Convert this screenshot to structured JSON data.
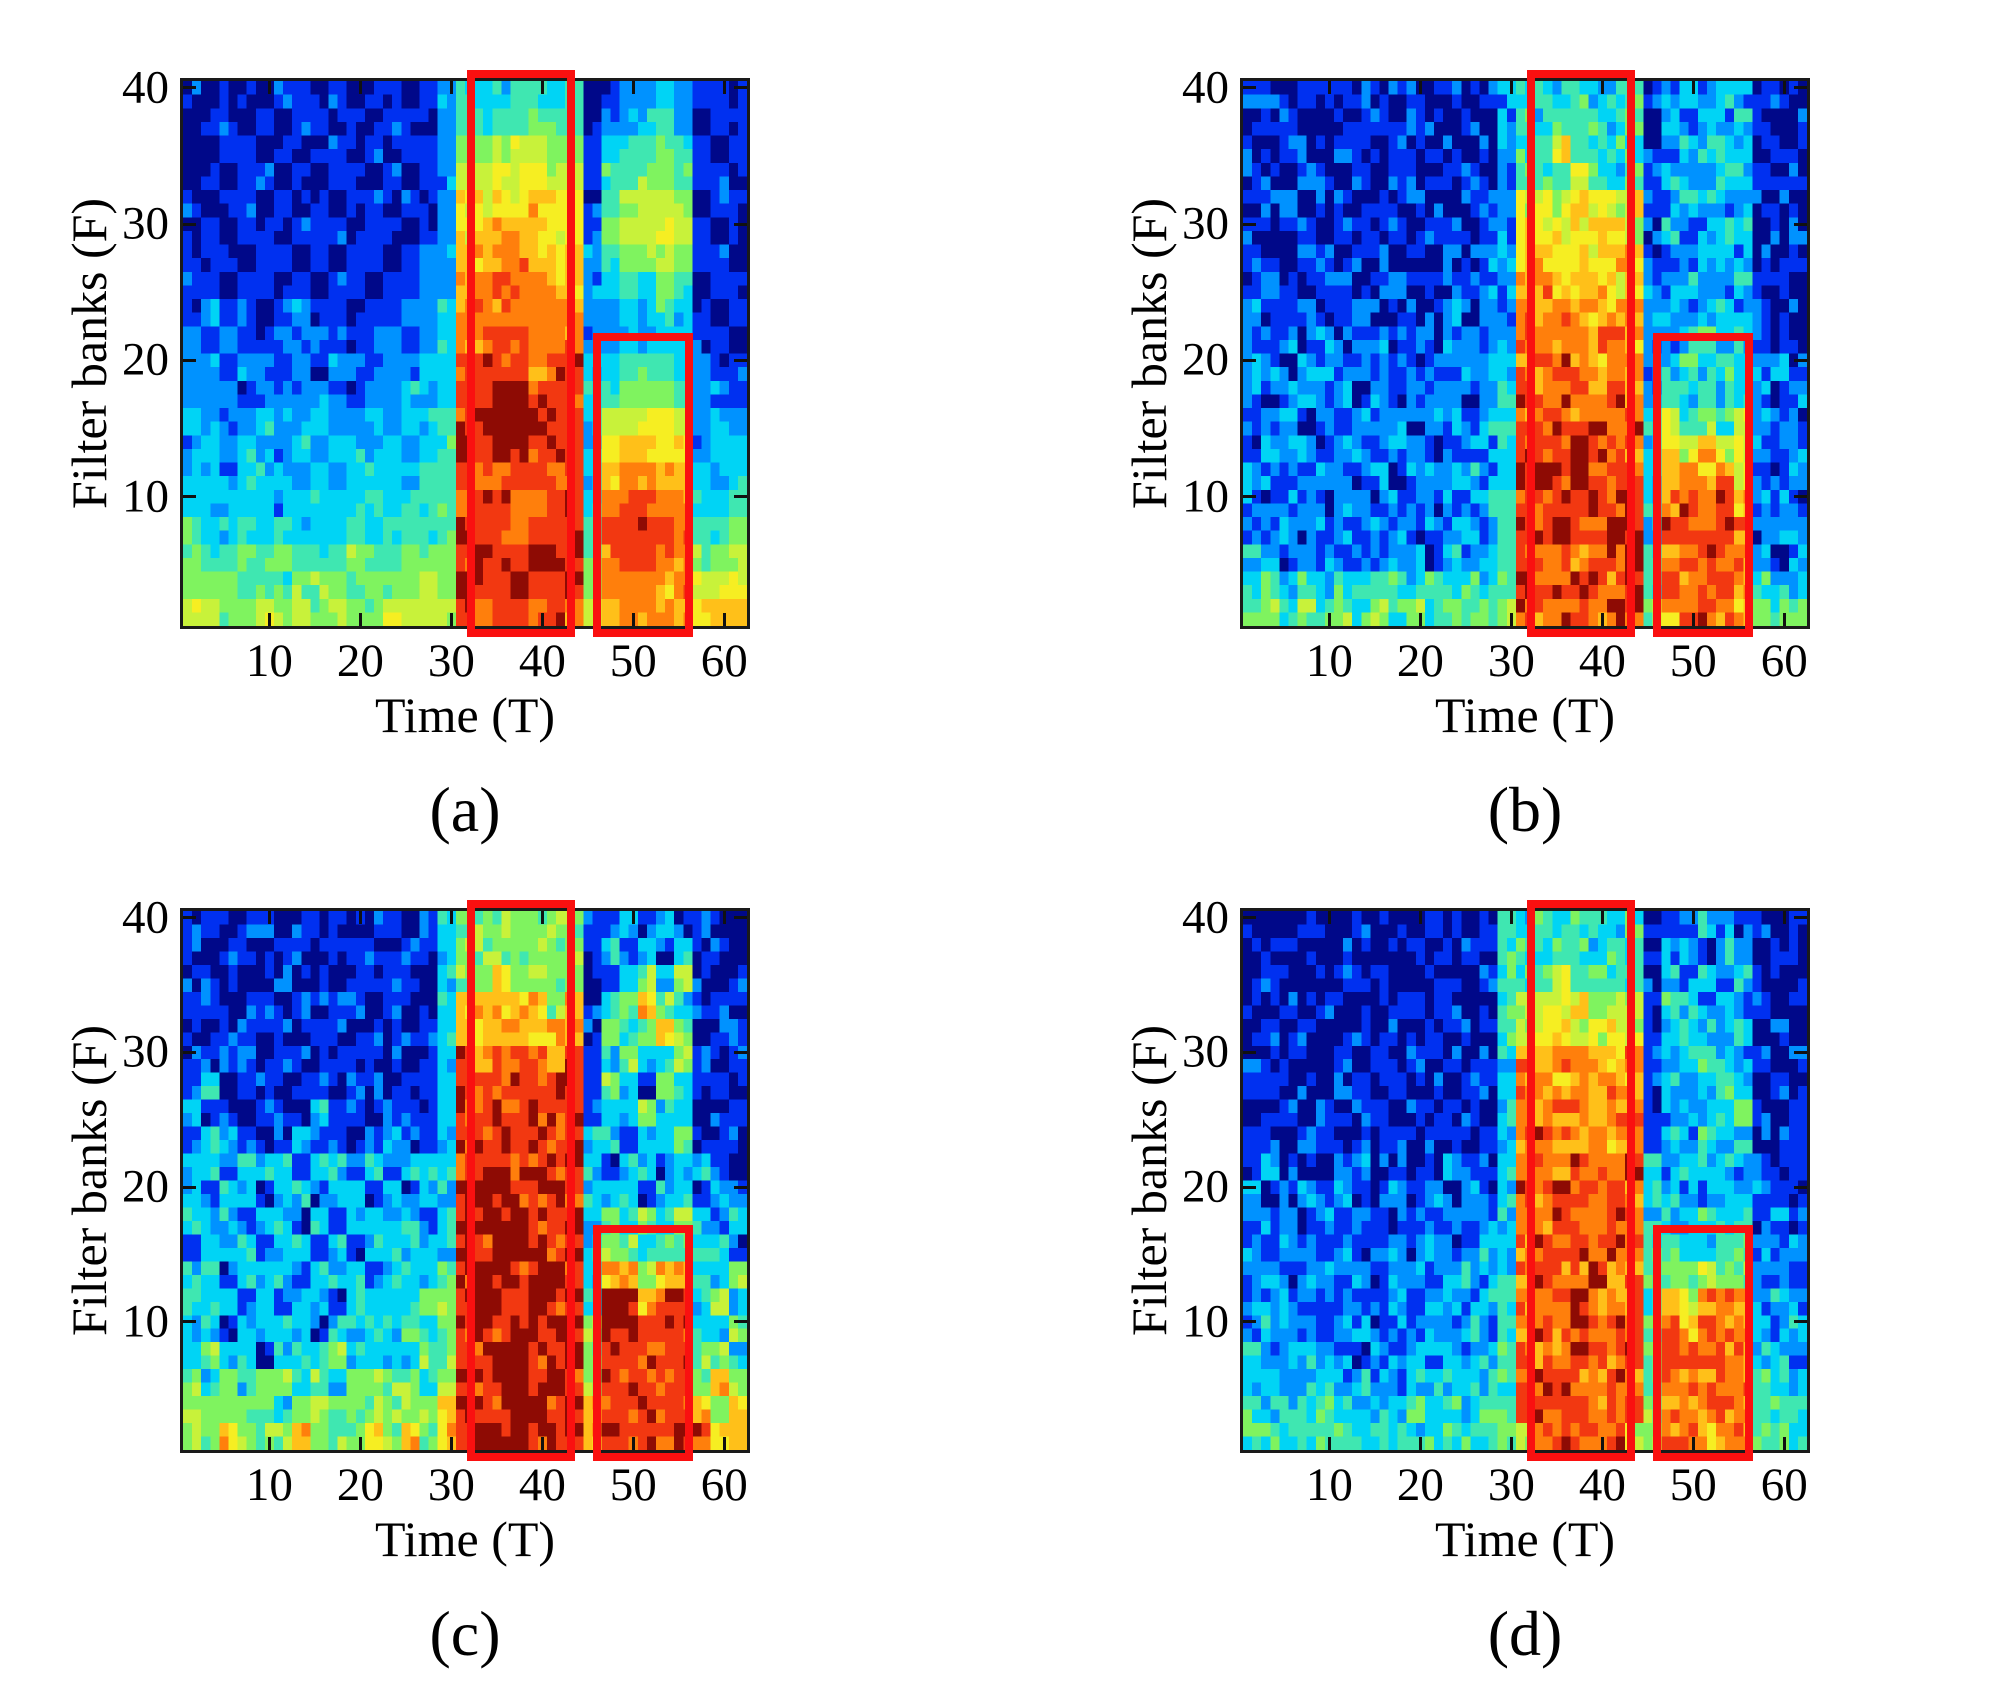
{
  "figure": {
    "background": "#ffffff",
    "layout": "2x2 grid of spectrogram heatmaps with red highlight boxes"
  },
  "palette": {
    "jet_levels": [
      "#000889",
      "#0030f0",
      "#0092ff",
      "#00d4f5",
      "#3fe7b1",
      "#7ff35f",
      "#c8f23a",
      "#f6ee22",
      "#ffc019",
      "#ff7f0c",
      "#f23811",
      "#8e0b04"
    ],
    "level_chars": "0123456789ab",
    "highlight_box_color": "#fa1010",
    "axis_color": "#1a1a1a",
    "text_color": "#000000"
  },
  "chart_data": [
    {
      "type": "heatmap",
      "panel_label": "(a)",
      "xlabel": "Time (T)",
      "ylabel": "Filter banks (F)",
      "x_ticks": [
        10,
        20,
        30,
        40,
        50,
        60
      ],
      "y_ticks": [
        10,
        20,
        30,
        40
      ],
      "x_range": [
        0.5,
        62.5
      ],
      "y_range": [
        0.5,
        40.5
      ],
      "rendering": "smooth spectrogram, jet colormap",
      "noise": 0.18,
      "seed": 11,
      "grid_cols": 31,
      "grid_rows": 20,
      "t_per_col": 2,
      "f_per_row": 2,
      "highlight_boxes": [
        {
          "t_start": 31.7,
          "t_end": 43.6,
          "f_start": -0.3,
          "f_end": 41.3
        },
        {
          "t_start": 45.6,
          "t_end": 56.6,
          "f_start": -0.3,
          "f_end": 22.0
        }
      ],
      "grid_top_to_bottom": [
        "1001011010110124334434012232110",
        "0110101101011024444544022342011",
        "0011010110101125566655134454101",
        "0101101011010126677766144554110",
        "1011010101101127777877145665011",
        "0101101110110127888877156676101",
        "1110110101101228899888245565110",
        "1101101011011228999988234454011",
        "1211012110112239999999223343101",
        "21211212112212399aa999223233110",
        "221221212212233aaaa9aa334443211",
        "222122122122323aabbaaa345554221",
        "322232232232334abbbbaa366776232",
        "232322323323234babbaba378877233",
        "332333232333344a99aa9a389988323",
        "3333323333434449aa99aa39aa99334",
        "433434333434444aaa9aaa4aaaa9445",
        "544545444544555abaabba49aa99556",
        "555454555455565baabaab599989667",
        "665565656556666a9aa9a9689998788"
      ]
    },
    {
      "type": "heatmap",
      "panel_label": "(b)",
      "xlabel": "Time (T)",
      "ylabel": "Filter banks (F)",
      "x_ticks": [
        10,
        20,
        30,
        40,
        50,
        60
      ],
      "y_ticks": [
        10,
        20,
        30,
        40
      ],
      "x_range": [
        0.5,
        62.5
      ],
      "y_range": [
        0.5,
        40.5
      ],
      "rendering": "quantized speckled spectrogram, jet colormap",
      "noise": 0.5,
      "seed": 29,
      "grid_cols": 31,
      "grid_rows": 20,
      "t_per_col": 2,
      "f_per_row": 2,
      "highlight_boxes": [
        {
          "t_start": 31.7,
          "t_end": 43.6,
          "f_start": -0.3,
          "f_end": 41.3
        },
        {
          "t_start": 45.6,
          "t_end": 56.6,
          "f_start": -0.3,
          "f_end": 22.0
        }
      ],
      "grid_top_to_bottom": [
        "1101011011010123434334123232110",
        "0110101101101024344434132323101",
        "1011010110110124474344123332010",
        "1101101011011024447434133233101",
        "0110110101101126767767123322110",
        "1011011010110127677876132233011",
        "1101101101011228878788122332101",
        "1210110110112228988878223223110",
        "2112112101121229899889232332101",
        "1221211212122139989998223433210",
        "22122121212122399a9899234343221",
        "212212121222123a9aa9a9243434212",
        "2221212221222339aa9a9a364546221",
        "122212212212223aa9baa9376867222",
        "221222121222323abab9aa389897212",
        "212212212212234a9aabab39a9a8221",
        "222122122122324aabaaba3aa9a9122",
        "321221212213234a9a9aab49aaa9212",
        "343434344343434baaba9a4a99a8433",
        "454545454545455a9aa9aa589a98544"
      ]
    },
    {
      "type": "heatmap",
      "panel_label": "(c)",
      "xlabel": "Time (T)",
      "ylabel": "Filter banks (F)",
      "x_ticks": [
        10,
        20,
        30,
        40,
        50,
        60
      ],
      "y_ticks": [
        10,
        20,
        30,
        40
      ],
      "x_range": [
        0.5,
        62.5
      ],
      "y_range": [
        0.5,
        40.5
      ],
      "rendering": "coarsely quantized spectrogram, jet colormap",
      "noise": 0.38,
      "seed": 47,
      "grid_cols": 31,
      "grid_rows": 20,
      "t_per_col": 2,
      "f_per_row": 2,
      "highlight_boxes": [
        {
          "t_start": 31.7,
          "t_end": 43.6,
          "f_start": -0.3,
          "f_end": 41.3
        },
        {
          "t_start": 45.6,
          "t_end": 56.6,
          "f_start": -0.3,
          "f_end": 17.2
        }
      ],
      "grid_top_to_bottom": [
        "1101101110110135555555113131100",
        "1011011011101135555555131313010",
        "1110110101111035585555113535101",
        "1101101111010138888858135853110",
        "1011110110101138888888153585011",
        "111101101111013a8aaa8a135335101",
        "130110110110113aaaaaaa153153110",
        "311011031101113aaaaaaa133533011",
        "133101311013113aaaaaaa331335101",
        "331333133131333aaaaaaa313313310",
        "313313313313133bbbaaba333133131",
        "333133131333313bbbbaab353535313",
        "133313313133333babbbab355355331",
        "331333133313335abbabba388588335",
        "333131331333355abbabab3bb8aa353",
        "331333313333535ababbba5bbaaa335",
        "353313335333355aabbaab5aaaaa553",
        "535355353555535babbaba5aaaaa585",
        "555553555555558bbabbab8aaaaa858",
        "558555855585858abbbaba8aaaaaa88"
      ]
    },
    {
      "type": "heatmap",
      "panel_label": "(d)",
      "xlabel": "Time (T)",
      "ylabel": "Filter banks (F)",
      "x_ticks": [
        10,
        20,
        30,
        40,
        50,
        60
      ],
      "y_ticks": [
        10,
        20,
        30,
        40
      ],
      "x_range": [
        0.5,
        62.5
      ],
      "y_range": [
        0.5,
        40.5
      ],
      "rendering": "quantized spectrogram, jet colormap, dark upper background",
      "noise": 0.45,
      "seed": 83,
      "grid_cols": 31,
      "grid_rows": 20,
      "t_per_col": 2,
      "f_per_row": 2,
      "highlight_boxes": [
        {
          "t_start": 31.7,
          "t_end": 43.6,
          "f_start": -0.3,
          "f_end": 41.3
        },
        {
          "t_start": 45.6,
          "t_end": 56.6,
          "f_start": -0.3,
          "f_end": 17.2
        }
      ],
      "grid_top_to_bottom": [
        "0001001000100143434434012321100",
        "0010010001001044344344023132010",
        "0100010100100144474434132313001",
        "0010100011010046667666143231100",
        "0101001010101046776676134323010",
        "1010010101010139899889123432101",
        "1101011010101139989998132343010",
        "1010101101011039999899123234101",
        "1101101010110139a99989132423110",
        "121101211012113aa9a99a323332101",
        "211212112121213a9aa9a9332233210",
        "12212121121212399a99a9333433121",
        "2122121221212339a9a9a9443344212",
        "2212212122123239a99a99455655221",
        "22212212212323499aa999486999232",
        "2322122122323249a9a9a94a8999323",
        "322322122323234a99a99a4aa999332",
        "3323323223333349aa99a9499999433",
        "433343333434344aaaa9aa599999443",
        "44434434434444569a99a6599899544"
      ]
    }
  ]
}
